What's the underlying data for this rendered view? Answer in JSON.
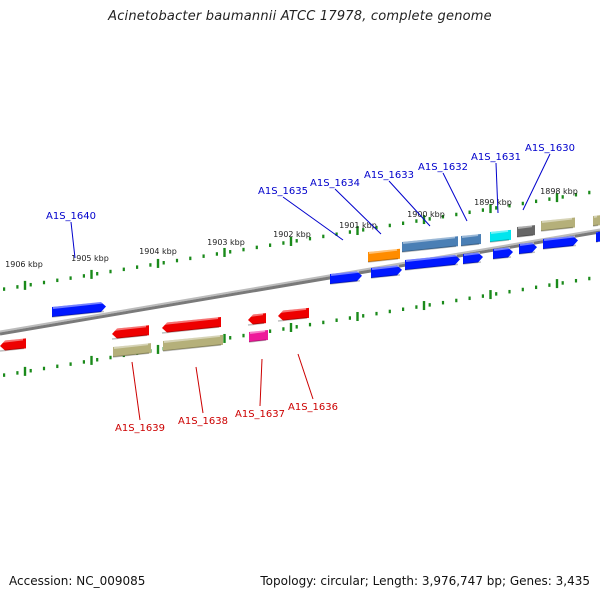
{
  "title": "Acinetobacter baumannii ATCC 17978, complete genome",
  "accession": "Accession: NC_009085",
  "topology": "Topology: circular; Length: 3,976,747 bp; Genes: 3,435",
  "colors": {
    "backbone": "#7a7a7a",
    "tick": "#1a8a1a",
    "label_forward": "#0000cc",
    "label_reverse": "#cc0000",
    "blue": "#0018ff",
    "steel": "#4a7fb5",
    "orange": "#ff8c00",
    "cyan": "#00e5ee",
    "gray": "#666666",
    "khaki": "#b5b07a",
    "red": "#ee0000",
    "magenta": "#ee1a9a"
  },
  "scale_labels": [
    "1906 kbp",
    "1905 kbp",
    "1904 kbp",
    "1903 kbp",
    "1902 kbp",
    "1901 kbp",
    "1900 kbp",
    "1899 kbp",
    "1898 kbp"
  ],
  "genes_top": [
    "A1S_1640",
    "A1S_1635",
    "A1S_1634",
    "A1S_1633",
    "A1S_1632",
    "A1S_1631",
    "A1S_1630"
  ],
  "genes_bottom": [
    "A1S_1639",
    "A1S_1638",
    "A1S_1637",
    "A1S_1636"
  ]
}
